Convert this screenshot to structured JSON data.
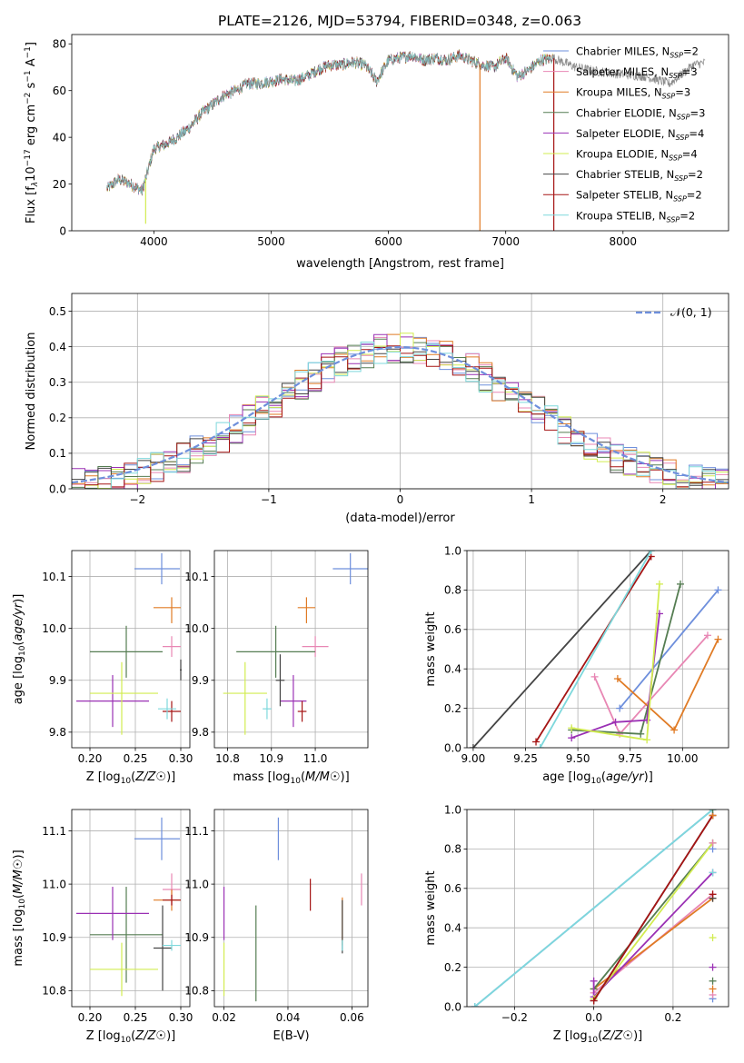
{
  "figure_title": "PLATE=2126, MJD=53794, FIBERID=0348, z=0.063",
  "models": [
    {
      "name": "Chabrier MILES",
      "nssp": 2,
      "color": "#6e8fdc"
    },
    {
      "name": "Salpeter MILES",
      "nssp": 3,
      "color": "#e887b4"
    },
    {
      "name": "Kroupa MILES",
      "nssp": 3,
      "color": "#e07b25"
    },
    {
      "name": "Chabrier ELODIE",
      "nssp": 3,
      "color": "#557d52"
    },
    {
      "name": "Salpeter ELODIE",
      "nssp": 4,
      "color": "#9a30b4"
    },
    {
      "name": "Kroupa ELODIE",
      "nssp": 4,
      "color": "#d2ec50"
    },
    {
      "name": "Chabrier STELIB",
      "nssp": 2,
      "color": "#444444"
    },
    {
      "name": "Salpeter STELIB",
      "nssp": 2,
      "color": "#a51414"
    },
    {
      "name": "Kroupa STELIB",
      "nssp": 2,
      "color": "#7ed8dc"
    }
  ],
  "legend_suffix_prefix": "N",
  "legend_suffix_sub": "SSP",
  "chart_data": [
    {
      "id": "spectrum",
      "type": "line",
      "xlabel": "wavelength [Angstrom, rest frame]",
      "ylabel": "Flux [f",
      "ylabel_parts": [
        "Flux [f",
        "λ",
        "10",
        "−17",
        " erg cm",
        "−2",
        " s",
        "−1",
        " A",
        "−1",
        "]"
      ],
      "xlim": [
        3300,
        8900
      ],
      "ylim": [
        0,
        84
      ],
      "xticks": [
        4000,
        5000,
        6000,
        7000,
        8000
      ],
      "yticks": [
        0,
        20,
        40,
        60,
        80
      ],
      "legend": "top-right",
      "spectrum_anchors": {
        "x": [
          3600,
          3700,
          3800,
          3900,
          4000,
          4100,
          4200,
          4300,
          4400,
          4500,
          4600,
          4700,
          4800,
          4900,
          5000,
          5100,
          5200,
          5300,
          5400,
          5500,
          5600,
          5700,
          5800,
          5900,
          6000,
          6100,
          6200,
          6300,
          6400,
          6500,
          6600,
          6700,
          6800,
          6900,
          7000,
          7100,
          7200,
          7300,
          7400,
          7600,
          7800,
          8000,
          8200,
          8400,
          8600,
          8700
        ],
        "y": [
          18,
          22,
          20,
          17,
          35,
          37,
          40,
          44,
          50,
          54,
          58,
          60,
          63,
          63,
          64,
          65,
          64,
          66,
          69,
          71,
          71,
          72,
          71,
          64,
          73,
          74,
          75,
          73,
          74,
          73,
          75,
          73,
          71,
          70,
          74,
          66,
          69,
          73,
          74,
          70,
          68,
          67,
          66,
          63,
          71,
          72
        ]
      },
      "model_wavelength_end": 7400,
      "dips": [
        {
          "x": 3930,
          "y": 3
        },
        {
          "x": 6780,
          "y": 0
        },
        {
          "x": 7410,
          "y": 0
        }
      ]
    },
    {
      "id": "residuals",
      "type": "step",
      "xlabel": "(data-model)/error",
      "ylabel": "Normed distribution",
      "xlim": [
        -2.5,
        2.5
      ],
      "ylim": [
        0,
        0.55
      ],
      "xticks": [
        -2,
        -1,
        0,
        1,
        2
      ],
      "yticks": [
        0.0,
        0.1,
        0.2,
        0.3,
        0.4,
        0.5
      ],
      "bin_width": 0.1,
      "reference_label": "𝒩(0, 1)",
      "reference_color": "#6e8fdc",
      "legend": "top-right"
    },
    {
      "id": "age_vs_Z",
      "type": "errorbar",
      "xlabel": "Z [log10(Z/Z☉)]",
      "ylabel": "age [log10(age/yr)]",
      "xlim": [
        0.18,
        0.31
      ],
      "ylim": [
        9.77,
        10.15
      ],
      "xticks": [
        0.2,
        0.25,
        0.3
      ],
      "yticks": [
        9.8,
        9.9,
        10.0,
        10.1
      ],
      "points": [
        {
          "model": 0,
          "x": 0.279,
          "xerr": [
            0.03,
            0.02
          ],
          "y": 10.115,
          "yerr": [
            0.03,
            0.03
          ]
        },
        {
          "model": 1,
          "x": 0.29,
          "xerr": [
            0.01,
            0.01
          ],
          "y": 9.965,
          "yerr": [
            0.02,
            0.02
          ]
        },
        {
          "model": 2,
          "x": 0.29,
          "xerr": [
            0.02,
            0.01
          ],
          "y": 10.04,
          "yerr": [
            0.03,
            0.02
          ]
        },
        {
          "model": 3,
          "x": 0.24,
          "xerr": [
            0.04,
            0.04
          ],
          "y": 9.955,
          "yerr": [
            0.05,
            0.05
          ]
        },
        {
          "model": 4,
          "x": 0.225,
          "xerr": [
            0.04,
            0.04
          ],
          "y": 9.86,
          "yerr": [
            0.05,
            0.05
          ]
        },
        {
          "model": 5,
          "x": 0.235,
          "xerr": [
            0.035,
            0.04
          ],
          "y": 9.875,
          "yerr": [
            0.08,
            0.06
          ]
        },
        {
          "model": 6,
          "x": 0.3,
          "xerr": [
            0.001,
            0.001
          ],
          "y": 9.92,
          "yerr": [
            0.02,
            0.02
          ]
        },
        {
          "model": 7,
          "x": 0.29,
          "xerr": [
            0.01,
            0.01
          ],
          "y": 9.84,
          "yerr": [
            0.02,
            0.02
          ]
        },
        {
          "model": 8,
          "x": 0.285,
          "xerr": [
            0.01,
            0.01
          ],
          "y": 9.845,
          "yerr": [
            0.02,
            0.02
          ]
        }
      ]
    },
    {
      "id": "age_vs_mass",
      "type": "errorbar",
      "xlabel": "mass [log10(M/M☉)]",
      "ylabel": "",
      "xlim": [
        10.77,
        11.12
      ],
      "ylim": [
        9.77,
        10.15
      ],
      "xticks": [
        10.8,
        10.9,
        11.0
      ],
      "yticks": [
        9.8,
        9.9,
        10.0,
        10.1
      ],
      "points": [
        {
          "model": 0,
          "x": 11.08,
          "xerr": [
            0.04,
            0.04
          ],
          "y": 10.115,
          "yerr": [
            0.03,
            0.03
          ]
        },
        {
          "model": 1,
          "x": 11.0,
          "xerr": [
            0.03,
            0.03
          ],
          "y": 9.965,
          "yerr": [
            0.02,
            0.02
          ]
        },
        {
          "model": 2,
          "x": 10.98,
          "xerr": [
            0.02,
            0.02
          ],
          "y": 10.04,
          "yerr": [
            0.03,
            0.02
          ]
        },
        {
          "model": 3,
          "x": 10.91,
          "xerr": [
            0.09,
            0.09
          ],
          "y": 9.955,
          "yerr": [
            0.05,
            0.05
          ]
        },
        {
          "model": 4,
          "x": 10.95,
          "xerr": [
            0.03,
            0.03
          ],
          "y": 9.86,
          "yerr": [
            0.05,
            0.05
          ]
        },
        {
          "model": 5,
          "x": 10.84,
          "xerr": [
            0.05,
            0.05
          ],
          "y": 9.875,
          "yerr": [
            0.08,
            0.06
          ]
        },
        {
          "model": 6,
          "x": 10.92,
          "xerr": [
            0.01,
            0.01
          ],
          "y": 9.9,
          "yerr": [
            0.05,
            0.05
          ]
        },
        {
          "model": 7,
          "x": 10.97,
          "xerr": [
            0.01,
            0.01
          ],
          "y": 9.84,
          "yerr": [
            0.02,
            0.02
          ]
        },
        {
          "model": 8,
          "x": 10.89,
          "xerr": [
            0.01,
            0.01
          ],
          "y": 9.845,
          "yerr": [
            0.02,
            0.02
          ]
        }
      ]
    },
    {
      "id": "massweight_vs_age",
      "type": "line",
      "xlabel": "age [log10(age/yr)]",
      "ylabel": "mass weight",
      "xlim": [
        8.97,
        10.22
      ],
      "ylim": [
        0,
        1
      ],
      "xticks": [
        9.0,
        9.25,
        9.5,
        9.75,
        10.0
      ],
      "yticks": [
        0.0,
        0.2,
        0.4,
        0.6,
        0.8,
        1.0
      ],
      "series": [
        {
          "model": 0,
          "x": [
            9.7,
            10.17
          ],
          "y": [
            0.2,
            0.8
          ]
        },
        {
          "model": 1,
          "x": [
            9.58,
            9.7,
            10.12
          ],
          "y": [
            0.36,
            0.07,
            0.57
          ]
        },
        {
          "model": 2,
          "x": [
            9.69,
            9.96,
            10.17
          ],
          "y": [
            0.35,
            0.09,
            0.55
          ]
        },
        {
          "model": 3,
          "x": [
            9.47,
            9.8,
            9.99
          ],
          "y": [
            0.09,
            0.07,
            0.83
          ]
        },
        {
          "model": 4,
          "x": [
            9.47,
            9.68,
            9.83,
            9.89
          ],
          "y": [
            0.05,
            0.13,
            0.14,
            0.68
          ]
        },
        {
          "model": 5,
          "x": [
            9.47,
            9.83,
            9.89
          ],
          "y": [
            0.1,
            0.04,
            0.83
          ]
        },
        {
          "model": 6,
          "x": [
            9.0,
            9.85
          ],
          "y": [
            0.0,
            1.0
          ]
        },
        {
          "model": 7,
          "x": [
            9.3,
            9.85
          ],
          "y": [
            0.03,
            0.97
          ]
        },
        {
          "model": 8,
          "x": [
            9.32,
            9.85
          ],
          "y": [
            0.0,
            1.0
          ]
        }
      ]
    },
    {
      "id": "mass_vs_Z",
      "type": "errorbar",
      "xlabel": "Z [log10(Z/Z☉)]",
      "ylabel": "mass [log10(M/M☉)]",
      "xlim": [
        0.18,
        0.31
      ],
      "ylim": [
        10.77,
        11.14
      ],
      "xticks": [
        0.2,
        0.25,
        0.3
      ],
      "yticks": [
        10.8,
        10.9,
        11.0,
        11.1
      ],
      "points": [
        {
          "model": 0,
          "x": 0.279,
          "xerr": [
            0.03,
            0.02
          ],
          "y": 11.085,
          "yerr": [
            0.04,
            0.04
          ]
        },
        {
          "model": 1,
          "x": 0.29,
          "xerr": [
            0.01,
            0.01
          ],
          "y": 10.99,
          "yerr": [
            0.03,
            0.03
          ]
        },
        {
          "model": 2,
          "x": 0.29,
          "xerr": [
            0.02,
            0.01
          ],
          "y": 10.97,
          "yerr": [
            0.02,
            0.02
          ]
        },
        {
          "model": 3,
          "x": 0.24,
          "xerr": [
            0.04,
            0.04
          ],
          "y": 10.905,
          "yerr": [
            0.09,
            0.09
          ]
        },
        {
          "model": 4,
          "x": 0.225,
          "xerr": [
            0.04,
            0.04
          ],
          "y": 10.945,
          "yerr": [
            0.05,
            0.05
          ]
        },
        {
          "model": 5,
          "x": 0.235,
          "xerr": [
            0.035,
            0.04
          ],
          "y": 10.84,
          "yerr": [
            0.05,
            0.05
          ]
        },
        {
          "model": 6,
          "x": 0.28,
          "xerr": [
            0.01,
            0.01
          ],
          "y": 10.88,
          "yerr": [
            0.08,
            0.08
          ]
        },
        {
          "model": 7,
          "x": 0.29,
          "xerr": [
            0.01,
            0.01
          ],
          "y": 10.97,
          "yerr": [
            0.01,
            0.01
          ]
        },
        {
          "model": 8,
          "x": 0.29,
          "xerr": [
            0.01,
            0.01
          ],
          "y": 10.885,
          "yerr": [
            0.01,
            0.01
          ]
        }
      ]
    },
    {
      "id": "mass_vs_ebv",
      "type": "errorbar",
      "xlabel": "E(B-V)",
      "ylabel": "",
      "xlim": [
        0.017,
        0.065
      ],
      "ylim": [
        10.77,
        11.14
      ],
      "xticks": [
        0.02,
        0.04,
        0.06
      ],
      "yticks": [
        10.8,
        10.9,
        11.0,
        11.1
      ],
      "points": [
        {
          "model": 0,
          "x": 0.037,
          "xerr": [
            0,
            0
          ],
          "y": 11.085,
          "yerr": [
            0.04,
            0.04
          ]
        },
        {
          "model": 1,
          "x": 0.063,
          "xerr": [
            0,
            0
          ],
          "y": 10.99,
          "yerr": [
            0.03,
            0.03
          ]
        },
        {
          "model": 2,
          "x": 0.057,
          "xerr": [
            0,
            0
          ],
          "y": 10.93,
          "yerr": [
            0.045,
            0.045
          ]
        },
        {
          "model": 3,
          "x": 0.03,
          "xerr": [
            0,
            0
          ],
          "y": 10.87,
          "yerr": [
            0.09,
            0.09
          ]
        },
        {
          "model": 4,
          "x": 0.02,
          "xerr": [
            0,
            0
          ],
          "y": 10.945,
          "yerr": [
            0.05,
            0.05
          ]
        },
        {
          "model": 5,
          "x": 0.02,
          "xerr": [
            0,
            0
          ],
          "y": 10.84,
          "yerr": [
            0.05,
            0.05
          ]
        },
        {
          "model": 6,
          "x": 0.057,
          "xerr": [
            0,
            0
          ],
          "y": 10.92,
          "yerr": [
            0.05,
            0.05
          ]
        },
        {
          "model": 7,
          "x": 0.047,
          "xerr": [
            0,
            0
          ],
          "y": 10.98,
          "yerr": [
            0.03,
            0.03
          ]
        },
        {
          "model": 8,
          "x": 0.057,
          "xerr": [
            0,
            0
          ],
          "y": 10.885,
          "yerr": [
            0.01,
            0.01
          ]
        }
      ]
    },
    {
      "id": "massweight_vs_Z",
      "type": "line",
      "xlabel": "Z [log10(Z/Z☉)]",
      "ylabel": "mass weight",
      "xlim": [
        -0.32,
        0.34
      ],
      "ylim": [
        0,
        1
      ],
      "xticks": [
        -0.2,
        0.0,
        0.2
      ],
      "yticks": [
        0.0,
        0.2,
        0.4,
        0.6,
        0.8,
        1.0
      ],
      "series": [
        {
          "model": 0,
          "x": [
            -0.3,
            0.3
          ],
          "y": [
            0.0,
            1.0
          ]
        },
        {
          "model": 1,
          "x": [
            0.0,
            0.3
          ],
          "y": [
            0.07,
            0.57
          ]
        },
        {
          "model": 2,
          "x": [
            0.0,
            0.3
          ],
          "y": [
            0.09,
            0.55
          ]
        },
        {
          "model": 3,
          "x": [
            0.0,
            0.3
          ],
          "y": [
            0.09,
            0.83
          ]
        },
        {
          "model": 4,
          "x": [
            0.0,
            0.0,
            0.3
          ],
          "y": [
            0.13,
            0.05,
            0.68
          ]
        },
        {
          "model": 5,
          "x": [
            0.0,
            0.3
          ],
          "y": [
            0.04,
            0.83
          ]
        },
        {
          "model": 6,
          "x": [
            0.0,
            0.3
          ],
          "y": [
            0.03,
            0.97
          ]
        },
        {
          "model": 7,
          "x": [
            0.0,
            0.3
          ],
          "y": [
            0.03,
            0.97
          ]
        },
        {
          "model": 8,
          "x": [
            -0.3,
            0.3
          ],
          "y": [
            0.0,
            1.0
          ]
        }
      ],
      "stack_at_x": 0.3,
      "stack_values": [
        0.04,
        0.06,
        0.09,
        0.13,
        0.2,
        0.35,
        0.55,
        0.57,
        0.68,
        0.8,
        0.83,
        0.97,
        1.0
      ]
    }
  ]
}
